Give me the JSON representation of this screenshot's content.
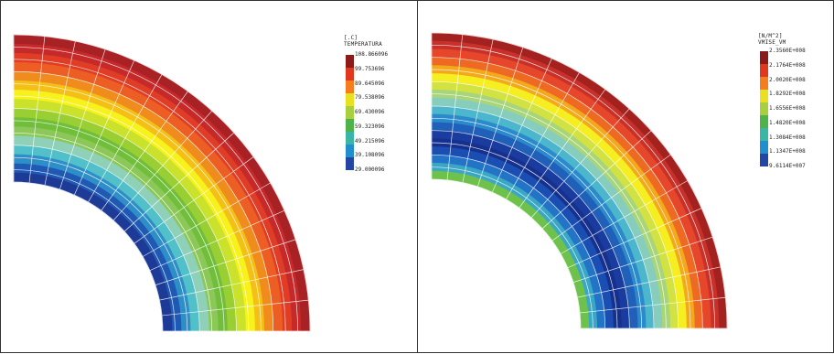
{
  "panels": [
    {
      "id": "temperature",
      "legend": {
        "unit": "[.C]",
        "title": "TEMPERATURA",
        "ticks": [
          "108.866096",
          "99.753696",
          "89.645096",
          "79.538096",
          "69.430096",
          "59.323096",
          "49.215096",
          "39.108096",
          "29.000096"
        ]
      }
    },
    {
      "id": "stress",
      "legend": {
        "unit": "[N/M^2]",
        "title": "VMISE_VM",
        "ticks": [
          "2.3560E+008",
          "2.1764E+008",
          "2.0020E+008",
          "1.8292E+008",
          "1.6556E+008",
          "1.4820E+008",
          "1.3084E+008",
          "1.1347E+008",
          "9.6114E+007"
        ]
      }
    }
  ],
  "colors": {
    "temperature_bands": [
      "#1c3a96",
      "#1f59b3",
      "#2e8fc8",
      "#52c0c8",
      "#8fd0b9",
      "#8cc859",
      "#71be3b",
      "#99cf33",
      "#cbe22c",
      "#f8f21c",
      "#f4c018",
      "#f08b1e",
      "#ec5e23",
      "#e03d26",
      "#c6292a",
      "#a82124"
    ],
    "stress_bands": [
      "#6ec24c",
      "#3aa7c4",
      "#2374c6",
      "#1a4eb3",
      "#16308e",
      "#1a3c9e",
      "#2160b8",
      "#2a8acb",
      "#4bb6cc",
      "#87cdbd",
      "#a9d57a",
      "#d3e243",
      "#f5ee21",
      "#f3a91b",
      "#ee6a22",
      "#e6462a",
      "#c8302a",
      "#a3211f"
    ],
    "legend_swatches": [
      "#8b1a1a",
      "#e2371f",
      "#f57d1e",
      "#e9e021",
      "#a7cf3e",
      "#4db34a",
      "#39b6a6",
      "#1f8fce",
      "#2245a6"
    ]
  }
}
